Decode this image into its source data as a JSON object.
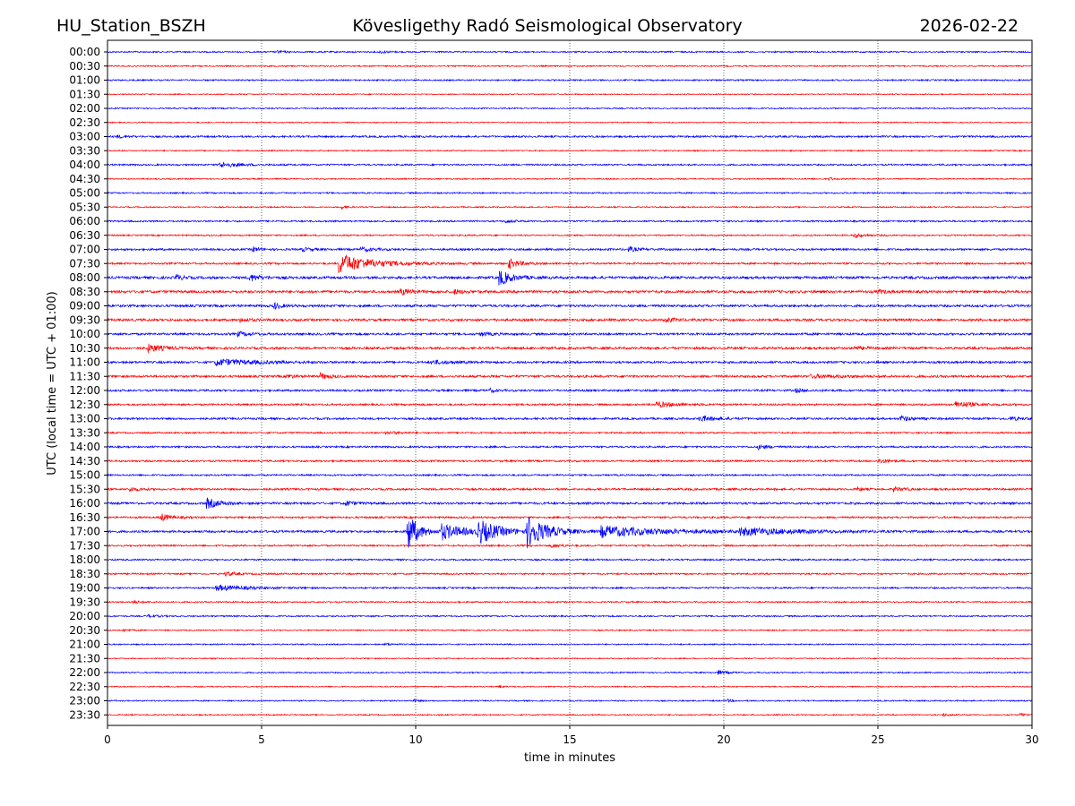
{
  "header": {
    "station": "HU_Station_BSZH",
    "observatory": "Kövesligethy Radó Seismological Observatory",
    "date": "2026-02-22"
  },
  "chart_data": {
    "type": "line",
    "title": "Kövesligethy Radó Seismological Observatory",
    "xlabel": "time in minutes",
    "ylabel": "UTC (local time = UTC + 01:00)",
    "xlim": [
      0,
      30
    ],
    "x_ticks": [
      "0",
      "5",
      "10",
      "15",
      "20",
      "25",
      "30"
    ],
    "x_tick_values": [
      0,
      5,
      10,
      15,
      20,
      25,
      30
    ],
    "grid": "vertical dotted lines at 5-minute intervals",
    "colors": {
      "even_rows": "#0000ff",
      "odd_rows": "#ff0000"
    },
    "rows": [
      {
        "label": "00:00",
        "noise": 0.8,
        "events": [
          {
            "t": 5.5,
            "amp": 1.5,
            "dur": 0.4
          },
          {
            "t": 8.8,
            "amp": 1.5,
            "dur": 0.4
          }
        ]
      },
      {
        "label": "00:30",
        "noise": 0.7,
        "events": []
      },
      {
        "label": "01:00",
        "noise": 0.8,
        "events": []
      },
      {
        "label": "01:30",
        "noise": 0.6,
        "events": []
      },
      {
        "label": "02:00",
        "noise": 0.7,
        "events": []
      },
      {
        "label": "02:30",
        "noise": 0.6,
        "events": []
      },
      {
        "label": "03:00",
        "noise": 1.0,
        "events": [
          {
            "t": 0.3,
            "amp": 1.5,
            "dur": 0.4
          }
        ]
      },
      {
        "label": "03:30",
        "noise": 0.7,
        "events": []
      },
      {
        "label": "04:00",
        "noise": 0.9,
        "events": [
          {
            "t": 3.6,
            "amp": 3.0,
            "dur": 1.0
          }
        ]
      },
      {
        "label": "04:30",
        "noise": 0.7,
        "events": [
          {
            "t": 23.4,
            "amp": 2.0,
            "dur": 0.2
          }
        ]
      },
      {
        "label": "05:00",
        "noise": 0.8,
        "events": []
      },
      {
        "label": "05:30",
        "noise": 0.7,
        "events": [
          {
            "t": 7.6,
            "amp": 2.0,
            "dur": 0.3
          }
        ]
      },
      {
        "label": "06:00",
        "noise": 0.9,
        "events": [
          {
            "t": 12.9,
            "amp": 1.8,
            "dur": 0.4
          }
        ]
      },
      {
        "label": "06:30",
        "noise": 0.8,
        "events": [
          {
            "t": 24.2,
            "amp": 2.5,
            "dur": 0.5
          }
        ]
      },
      {
        "label": "07:00",
        "noise": 1.1,
        "events": [
          {
            "t": 4.7,
            "amp": 3.0,
            "dur": 0.3
          },
          {
            "t": 6.3,
            "amp": 2.0,
            "dur": 0.5
          },
          {
            "t": 8.2,
            "amp": 2.0,
            "dur": 0.7
          },
          {
            "t": 16.9,
            "amp": 2.5,
            "dur": 0.5
          }
        ]
      },
      {
        "label": "07:30",
        "noise": 1.0,
        "events": [
          {
            "t": 7.5,
            "amp": 11.0,
            "dur": 1.6
          },
          {
            "t": 13.0,
            "amp": 6.0,
            "dur": 0.5
          }
        ]
      },
      {
        "label": "08:00",
        "noise": 1.4,
        "events": [
          {
            "t": 2.2,
            "amp": 4.0,
            "dur": 0.3
          },
          {
            "t": 4.6,
            "amp": 4.0,
            "dur": 0.5
          },
          {
            "t": 12.7,
            "amp": 9.0,
            "dur": 0.6
          }
        ]
      },
      {
        "label": "08:30",
        "noise": 1.4,
        "events": [
          {
            "t": 9.5,
            "amp": 3.0,
            "dur": 0.6
          },
          {
            "t": 11.2,
            "amp": 2.5,
            "dur": 0.5
          },
          {
            "t": 25.0,
            "amp": 2.0,
            "dur": 0.4
          }
        ]
      },
      {
        "label": "09:00",
        "noise": 1.3,
        "events": [
          {
            "t": 5.4,
            "amp": 4.0,
            "dur": 0.3
          }
        ]
      },
      {
        "label": "09:30",
        "noise": 1.3,
        "events": [
          {
            "t": 4.3,
            "amp": 2.0,
            "dur": 0.5
          },
          {
            "t": 18.1,
            "amp": 2.5,
            "dur": 0.5
          }
        ]
      },
      {
        "label": "10:00",
        "noise": 1.2,
        "events": [
          {
            "t": 4.2,
            "amp": 2.5,
            "dur": 0.6
          },
          {
            "t": 12.1,
            "amp": 2.0,
            "dur": 0.5
          }
        ]
      },
      {
        "label": "10:30",
        "noise": 1.3,
        "events": [
          {
            "t": 1.3,
            "amp": 4.5,
            "dur": 0.7
          },
          {
            "t": 24.2,
            "amp": 1.5,
            "dur": 0.6
          }
        ]
      },
      {
        "label": "11:00",
        "noise": 1.2,
        "events": [
          {
            "t": 3.5,
            "amp": 3.5,
            "dur": 2.0
          },
          {
            "t": 10.5,
            "amp": 2.0,
            "dur": 1.0
          }
        ]
      },
      {
        "label": "11:30",
        "noise": 1.2,
        "events": [
          {
            "t": 5.8,
            "amp": 2.5,
            "dur": 0.4
          },
          {
            "t": 6.9,
            "amp": 3.0,
            "dur": 0.5
          },
          {
            "t": 22.8,
            "amp": 1.5,
            "dur": 2.0
          }
        ]
      },
      {
        "label": "12:00",
        "noise": 1.1,
        "events": [
          {
            "t": 12.4,
            "amp": 2.0,
            "dur": 0.3
          },
          {
            "t": 22.3,
            "amp": 2.0,
            "dur": 0.5
          }
        ]
      },
      {
        "label": "12:30",
        "noise": 1.0,
        "events": [
          {
            "t": 17.8,
            "amp": 3.0,
            "dur": 1.0
          },
          {
            "t": 27.5,
            "amp": 3.5,
            "dur": 1.0
          }
        ]
      },
      {
        "label": "13:00",
        "noise": 1.1,
        "events": [
          {
            "t": 19.2,
            "amp": 3.0,
            "dur": 0.8
          },
          {
            "t": 25.7,
            "amp": 3.0,
            "dur": 0.6
          },
          {
            "t": 29.3,
            "amp": 1.8,
            "dur": 0.5
          }
        ]
      },
      {
        "label": "13:30",
        "noise": 0.9,
        "events": [
          {
            "t": 9.0,
            "amp": 1.5,
            "dur": 0.8
          }
        ]
      },
      {
        "label": "14:00",
        "noise": 1.0,
        "events": [
          {
            "t": 21.1,
            "amp": 2.5,
            "dur": 0.5
          }
        ]
      },
      {
        "label": "14:30",
        "noise": 1.0,
        "events": [
          {
            "t": 25.0,
            "amp": 2.5,
            "dur": 0.5
          }
        ]
      },
      {
        "label": "15:00",
        "noise": 0.9,
        "events": []
      },
      {
        "label": "15:30",
        "noise": 1.1,
        "events": [
          {
            "t": 0.7,
            "amp": 2.5,
            "dur": 0.4
          },
          {
            "t": 24.3,
            "amp": 2.5,
            "dur": 0.3
          },
          {
            "t": 25.5,
            "amp": 2.5,
            "dur": 0.5
          }
        ]
      },
      {
        "label": "16:00",
        "noise": 1.2,
        "events": [
          {
            "t": 3.2,
            "amp": 6.0,
            "dur": 0.6
          },
          {
            "t": 7.7,
            "amp": 3.0,
            "dur": 0.4
          }
        ]
      },
      {
        "label": "16:30",
        "noise": 1.0,
        "events": [
          {
            "t": 1.7,
            "amp": 4.5,
            "dur": 0.5
          }
        ]
      },
      {
        "label": "17:00",
        "noise": 1.2,
        "events": [
          {
            "t": 9.7,
            "amp": 26.0,
            "dur": 0.5
          },
          {
            "t": 10.8,
            "amp": 9.0,
            "dur": 1.2
          },
          {
            "t": 12.0,
            "amp": 13.0,
            "dur": 1.0
          },
          {
            "t": 13.6,
            "amp": 17.0,
            "dur": 1.0
          },
          {
            "t": 16.0,
            "amp": 6.0,
            "dur": 3.0
          },
          {
            "t": 20.5,
            "amp": 4.0,
            "dur": 2.5
          }
        ]
      },
      {
        "label": "17:30",
        "noise": 0.9,
        "events": [
          {
            "t": 14.4,
            "amp": 2.0,
            "dur": 0.5
          }
        ]
      },
      {
        "label": "18:00",
        "noise": 0.9,
        "events": []
      },
      {
        "label": "18:30",
        "noise": 0.9,
        "events": [
          {
            "t": 3.8,
            "amp": 2.5,
            "dur": 0.5
          }
        ]
      },
      {
        "label": "19:00",
        "noise": 0.9,
        "events": [
          {
            "t": 3.5,
            "amp": 3.0,
            "dur": 1.6
          }
        ]
      },
      {
        "label": "19:30",
        "noise": 0.8,
        "events": [
          {
            "t": 0.8,
            "amp": 1.8,
            "dur": 0.4
          }
        ]
      },
      {
        "label": "20:00",
        "noise": 0.8,
        "events": [
          {
            "t": 1.3,
            "amp": 1.5,
            "dur": 0.5
          }
        ]
      },
      {
        "label": "20:30",
        "noise": 0.7,
        "events": [
          {
            "t": 0.5,
            "amp": 1.5,
            "dur": 0.3
          }
        ]
      },
      {
        "label": "21:00",
        "noise": 0.7,
        "events": [
          {
            "t": 9.0,
            "amp": 1.5,
            "dur": 0.3
          }
        ]
      },
      {
        "label": "21:30",
        "noise": 0.6,
        "events": []
      },
      {
        "label": "22:00",
        "noise": 0.7,
        "events": [
          {
            "t": 19.8,
            "amp": 2.5,
            "dur": 0.4
          }
        ]
      },
      {
        "label": "22:30",
        "noise": 0.6,
        "events": [
          {
            "t": 12.7,
            "amp": 1.5,
            "dur": 0.2
          }
        ]
      },
      {
        "label": "23:00",
        "noise": 0.7,
        "events": [
          {
            "t": 9.9,
            "amp": 1.5,
            "dur": 0.3
          },
          {
            "t": 20.1,
            "amp": 1.5,
            "dur": 0.3
          }
        ]
      },
      {
        "label": "23:30",
        "noise": 0.7,
        "events": [
          {
            "t": 27.1,
            "amp": 1.5,
            "dur": 0.3
          },
          {
            "t": 29.6,
            "amp": 2.0,
            "dur": 0.3
          }
        ]
      }
    ]
  }
}
